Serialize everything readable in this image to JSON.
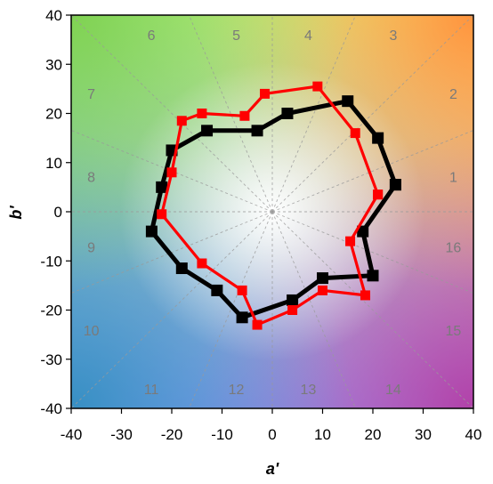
{
  "chart_data": {
    "type": "line",
    "xlabel": "a'",
    "ylabel": "b'",
    "xlim": [
      -40,
      40
    ],
    "ylim": [
      -40,
      40
    ],
    "x_ticks": [
      "-40",
      "-30",
      "-20",
      "-10",
      "0",
      "10",
      "20",
      "30",
      "40"
    ],
    "y_ticks": [
      "-40",
      "-30",
      "-20",
      "-10",
      "0",
      "10",
      "20",
      "30",
      "40"
    ],
    "hue_bin_labels": [
      "1",
      "2",
      "3",
      "4",
      "5",
      "6",
      "7",
      "8",
      "9",
      "10",
      "11",
      "12",
      "13",
      "14",
      "15",
      "16"
    ],
    "background": "CIE a'b' hue-angle color wheel with 16 dashed radial bin dividers",
    "grid": false,
    "series": [
      {
        "color": "#000000",
        "marker": "square",
        "points": [
          [
            24.5,
            5.5
          ],
          [
            21,
            15
          ],
          [
            15,
            22.5
          ],
          [
            3,
            20
          ],
          [
            -3,
            16.5
          ],
          [
            -13,
            16.5
          ],
          [
            -20,
            12.5
          ],
          [
            -22,
            5
          ],
          [
            -24,
            -4
          ],
          [
            -18,
            -11.5
          ],
          [
            -11,
            -16
          ],
          [
            -6,
            -21.5
          ],
          [
            4,
            -18
          ],
          [
            10,
            -13.5
          ],
          [
            20,
            -13
          ],
          [
            18,
            -4
          ],
          [
            24.5,
            5.5
          ]
        ]
      },
      {
        "color": "#ff0000",
        "marker": "square",
        "points": [
          [
            21,
            3.5
          ],
          [
            16.5,
            16
          ],
          [
            9,
            25.5
          ],
          [
            -1.5,
            24
          ],
          [
            -5.5,
            19.5
          ],
          [
            -14,
            20
          ],
          [
            -18,
            18.5
          ],
          [
            -20,
            8
          ],
          [
            -22,
            -0.5
          ],
          [
            -14,
            -10.5
          ],
          [
            -6,
            -16
          ],
          [
            -3,
            -23
          ],
          [
            4,
            -20
          ],
          [
            10,
            -16
          ],
          [
            18.5,
            -17
          ],
          [
            15.5,
            -6
          ],
          [
            21,
            3.5
          ]
        ]
      }
    ]
  }
}
